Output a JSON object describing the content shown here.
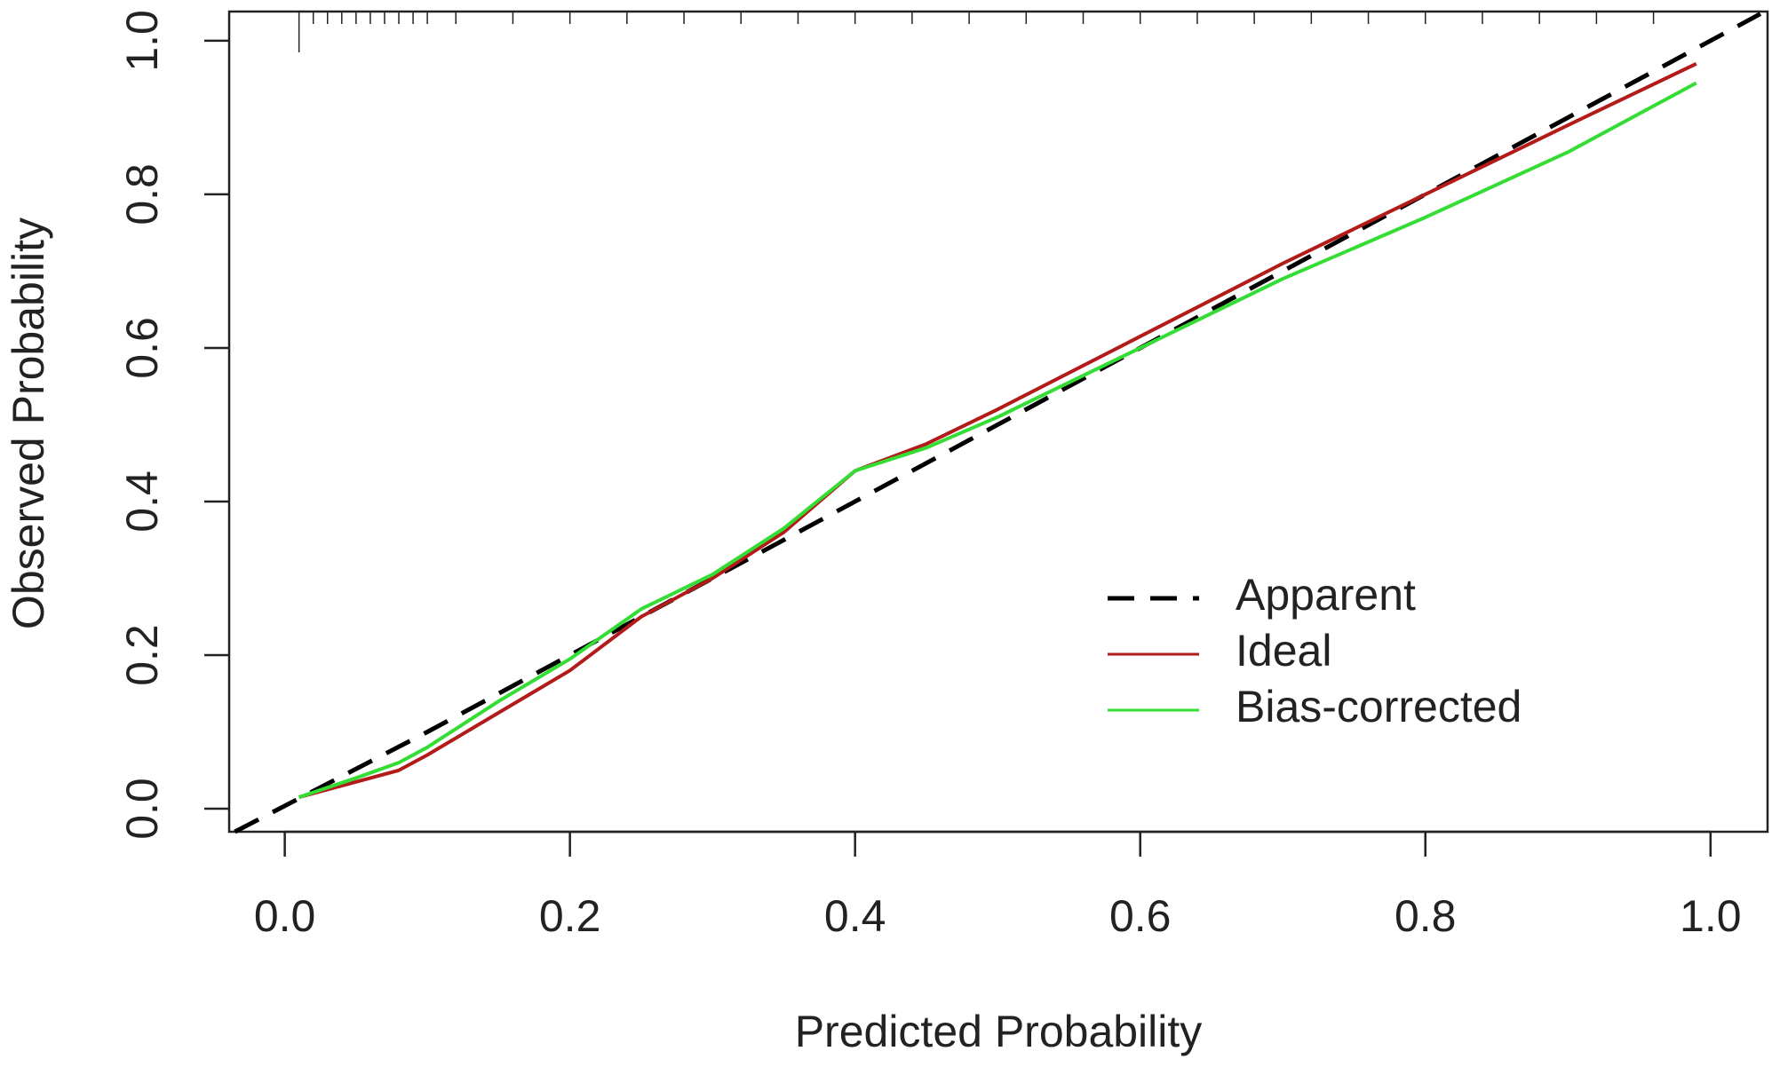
{
  "chart_data": {
    "type": "line",
    "xlabel": "Predicted Probability",
    "ylabel": "Observed Probability",
    "xlim": [
      -0.039,
      1.04
    ],
    "ylim": [
      -0.03,
      1.038
    ],
    "xticks": [
      {
        "value": 0,
        "label": "0.0"
      },
      {
        "value": 0.2,
        "label": "0.2"
      },
      {
        "value": 0.4,
        "label": "0.4"
      },
      {
        "value": 0.6,
        "label": "0.6"
      },
      {
        "value": 0.8,
        "label": "0.8"
      },
      {
        "value": 1,
        "label": "1.0"
      }
    ],
    "yticks": [
      {
        "value": 0,
        "label": "0.0"
      },
      {
        "value": 0.2,
        "label": "0.2"
      },
      {
        "value": 0.4,
        "label": "0.4"
      },
      {
        "value": 0.6,
        "label": "0.6"
      },
      {
        "value": 0.8,
        "label": "0.8"
      },
      {
        "value": 1,
        "label": "1.0"
      }
    ],
    "rug": [
      0.01,
      0.02,
      0.03,
      0.04,
      0.05,
      0.06,
      0.07,
      0.08,
      0.09,
      0.1,
      0.12,
      0.16,
      0.2,
      0.24,
      0.28,
      0.32,
      0.36,
      0.4,
      0.44,
      0.48,
      0.52,
      0.56,
      0.6,
      0.64,
      0.68,
      0.72,
      0.76,
      0.8,
      0.84,
      0.88,
      0.92,
      0.96
    ],
    "series": [
      {
        "name": "Apparent",
        "color": "#000000",
        "dashed": true,
        "x": [
          -0.035,
          0.1,
          0.2,
          0.3,
          0.4,
          0.5,
          0.6,
          0.7,
          0.8,
          0.9,
          1.035
        ],
        "values": [
          -0.03,
          0.1,
          0.2,
          0.3,
          0.4,
          0.5,
          0.6,
          0.7,
          0.8,
          0.9,
          1.035
        ]
      },
      {
        "name": "Ideal",
        "color": "#b31b1b",
        "dashed": false,
        "x": [
          0.01,
          0.05,
          0.08,
          0.1,
          0.15,
          0.2,
          0.25,
          0.3,
          0.35,
          0.4,
          0.45,
          0.5,
          0.6,
          0.7,
          0.8,
          0.9,
          0.99
        ],
        "values": [
          0.015,
          0.035,
          0.05,
          0.07,
          0.125,
          0.18,
          0.25,
          0.3,
          0.36,
          0.44,
          0.475,
          0.52,
          0.615,
          0.71,
          0.8,
          0.89,
          0.97
        ]
      },
      {
        "name": "Bias-corrected",
        "color": "#33dd33",
        "dashed": false,
        "x": [
          0.01,
          0.05,
          0.08,
          0.1,
          0.15,
          0.2,
          0.25,
          0.3,
          0.35,
          0.4,
          0.45,
          0.5,
          0.6,
          0.7,
          0.8,
          0.9,
          0.99
        ],
        "values": [
          0.015,
          0.04,
          0.06,
          0.08,
          0.14,
          0.195,
          0.26,
          0.305,
          0.365,
          0.44,
          0.47,
          0.51,
          0.6,
          0.69,
          0.77,
          0.855,
          0.945
        ]
      }
    ]
  }
}
